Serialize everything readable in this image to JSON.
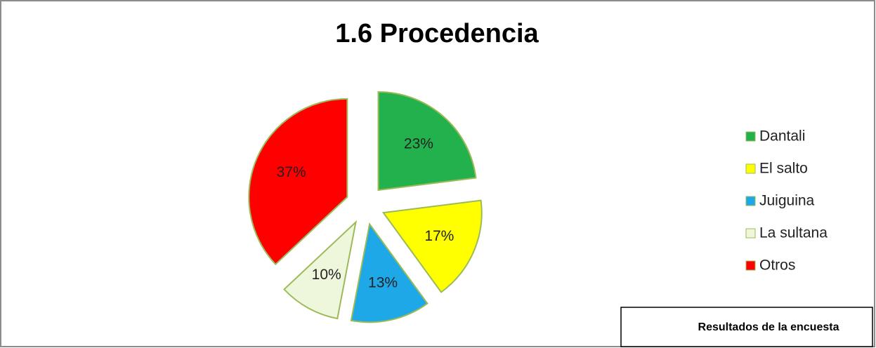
{
  "chart_data": {
    "type": "pie",
    "title": "1.6 Procedencia",
    "categories": [
      "Dantali",
      "El salto",
      "Juiguina",
      "La sultana",
      "Otros"
    ],
    "values": [
      23,
      17,
      13,
      10,
      37
    ],
    "value_labels": [
      "23%",
      "17%",
      "13%",
      "10%",
      "37%"
    ],
    "colors": [
      "#22b14c",
      "#ffff00",
      "#1ea8e8",
      "#eef7dc",
      "#ff0000"
    ],
    "exploded": true,
    "legend": "right"
  },
  "note": "Resultados de la encuesta"
}
